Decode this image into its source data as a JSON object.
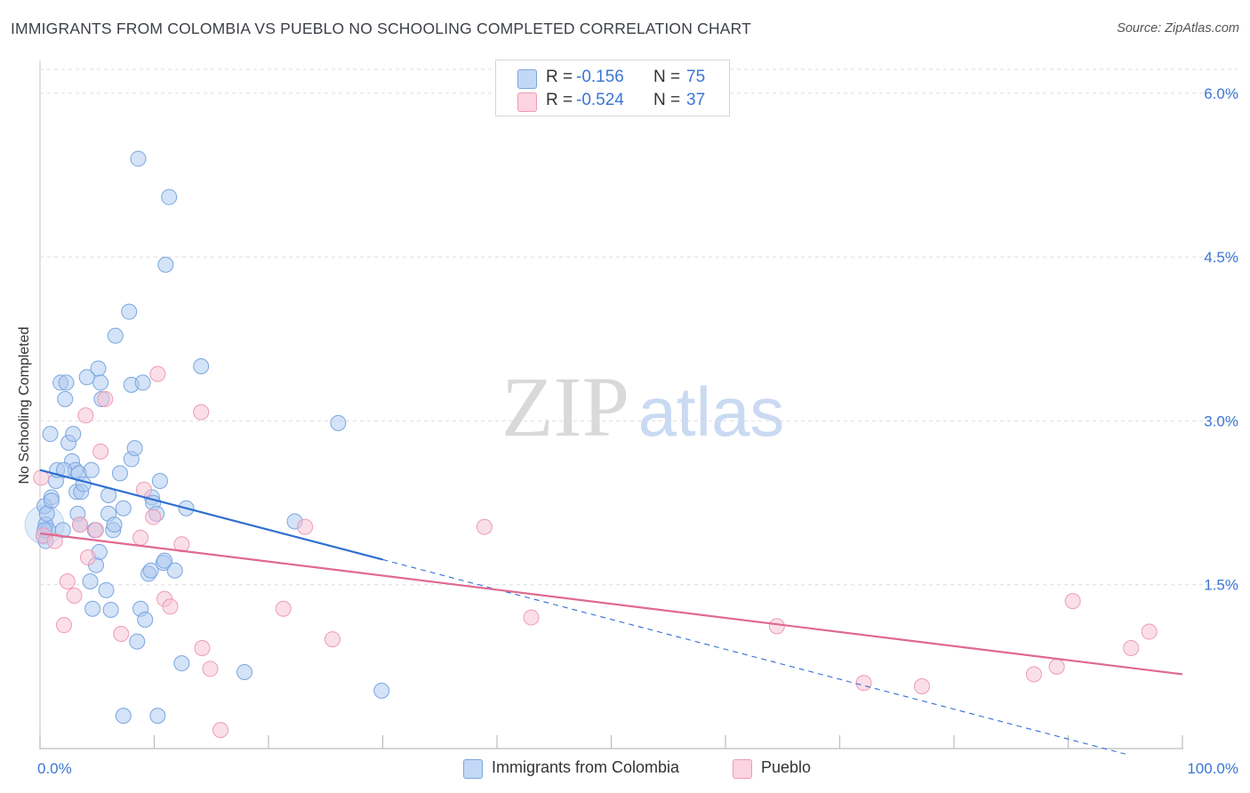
{
  "title": "IMMIGRANTS FROM COLOMBIA VS PUEBLO NO SCHOOLING COMPLETED CORRELATION CHART",
  "source": "Source: ZipAtlas.com",
  "watermark": {
    "zip": "ZIP",
    "atlas": "atlas"
  },
  "colors": {
    "blue_fill": "#a9c8f0",
    "blue_stroke": "#7aa6e0",
    "blue_line": "#2f6fd0",
    "pink_fill": "#f7bfd2",
    "pink_stroke": "#ee9bb6",
    "pink_line": "#e06890",
    "tick_label": "#3b76d4",
    "grid": "#dedede"
  },
  "legend": {
    "rows": [
      {
        "series": "blue",
        "r_label": "R =",
        "r_value": "-0.156",
        "n_label": "N =",
        "n_value": "75"
      },
      {
        "series": "pink",
        "r_label": "R =",
        "r_value": "-0.524",
        "n_label": "N =",
        "n_value": "37"
      }
    ]
  },
  "bottom_legend": {
    "blue_label": "Immigrants from Colombia",
    "pink_label": "Pueblo"
  },
  "chart_data": {
    "type": "scatter",
    "title": "IMMIGRANTS FROM COLOMBIA VS PUEBLO NO SCHOOLING COMPLETED CORRELATION CHART",
    "xlabel": "",
    "ylabel": "No Schooling Completed",
    "xlim": [
      0,
      100
    ],
    "ylim": [
      0,
      6.3
    ],
    "x_tick_labels": [
      {
        "value": 0,
        "label": "0.0%"
      },
      {
        "value": 100,
        "label": "100.0%"
      }
    ],
    "y_ticks": [
      {
        "value": 1.5,
        "label": "1.5%"
      },
      {
        "value": 3.0,
        "label": "3.0%"
      },
      {
        "value": 4.5,
        "label": "4.5%"
      },
      {
        "value": 6.0,
        "label": "6.0%"
      }
    ],
    "grid": "horizontal dashed",
    "series": [
      {
        "name": "Immigrants from Colombia",
        "color": "blue",
        "r": -0.156,
        "n": 75,
        "trend": {
          "x0": 0,
          "y0": 2.55,
          "x1": 30,
          "y1": 1.73,
          "dash_to_x": 95,
          "dash_to_y": -0.05
        },
        "points": [
          [
            0.3,
            1.95
          ],
          [
            0.4,
            2.22
          ],
          [
            0.5,
            2.05
          ],
          [
            0.6,
            2.15
          ],
          [
            0.7,
            2.0
          ],
          [
            0.5,
            1.9
          ],
          [
            1.0,
            2.3
          ],
          [
            0.9,
            2.88
          ],
          [
            1.4,
            2.45
          ],
          [
            1.5,
            2.55
          ],
          [
            2.0,
            2.0
          ],
          [
            1.8,
            3.35
          ],
          [
            2.2,
            3.2
          ],
          [
            2.3,
            3.35
          ],
          [
            2.5,
            2.8
          ],
          [
            2.8,
            2.63
          ],
          [
            2.9,
            2.88
          ],
          [
            3.1,
            2.55
          ],
          [
            3.2,
            2.35
          ],
          [
            3.4,
            2.52
          ],
          [
            3.3,
            2.15
          ],
          [
            3.5,
            2.05
          ],
          [
            3.6,
            2.35
          ],
          [
            3.8,
            2.42
          ],
          [
            4.1,
            3.4
          ],
          [
            4.5,
            2.55
          ],
          [
            4.4,
            1.53
          ],
          [
            4.6,
            1.28
          ],
          [
            4.8,
            2.0
          ],
          [
            4.9,
            1.68
          ],
          [
            5.2,
            1.8
          ],
          [
            5.1,
            3.48
          ],
          [
            5.3,
            3.35
          ],
          [
            5.4,
            3.2
          ],
          [
            5.8,
            1.45
          ],
          [
            6.0,
            2.32
          ],
          [
            6.0,
            2.15
          ],
          [
            6.2,
            1.27
          ],
          [
            6.4,
            2.0
          ],
          [
            6.5,
            2.05
          ],
          [
            6.6,
            3.78
          ],
          [
            7.0,
            2.52
          ],
          [
            7.3,
            2.2
          ],
          [
            7.3,
            0.3
          ],
          [
            7.8,
            4.0
          ],
          [
            8.0,
            2.65
          ],
          [
            8.0,
            3.33
          ],
          [
            8.3,
            2.75
          ],
          [
            8.5,
            0.98
          ],
          [
            8.6,
            5.4
          ],
          [
            8.8,
            1.28
          ],
          [
            9.0,
            3.35
          ],
          [
            9.2,
            1.18
          ],
          [
            9.5,
            1.6
          ],
          [
            9.7,
            1.63
          ],
          [
            9.8,
            2.3
          ],
          [
            9.9,
            2.25
          ],
          [
            10.2,
            2.15
          ],
          [
            10.5,
            2.45
          ],
          [
            10.3,
            0.3
          ],
          [
            10.8,
            1.7
          ],
          [
            10.9,
            1.72
          ],
          [
            11.0,
            4.43
          ],
          [
            11.3,
            5.05
          ],
          [
            11.8,
            1.63
          ],
          [
            12.4,
            0.78
          ],
          [
            12.8,
            2.2
          ],
          [
            14.1,
            3.5
          ],
          [
            17.9,
            0.7
          ],
          [
            22.3,
            2.08
          ],
          [
            26.1,
            2.98
          ],
          [
            29.9,
            0.53
          ],
          [
            0.4,
            2.0
          ],
          [
            1.0,
            2.27
          ],
          [
            2.1,
            2.55
          ]
        ]
      },
      {
        "name": "Pueblo",
        "color": "pink",
        "r": -0.524,
        "n": 37,
        "trend": {
          "x0": 0,
          "y0": 1.97,
          "x1": 100,
          "y1": 0.68
        },
        "points": [
          [
            0.1,
            2.48
          ],
          [
            0.3,
            1.95
          ],
          [
            1.3,
            1.9
          ],
          [
            2.1,
            1.13
          ],
          [
            2.4,
            1.53
          ],
          [
            3.0,
            1.4
          ],
          [
            3.5,
            2.05
          ],
          [
            4.0,
            3.05
          ],
          [
            4.2,
            1.75
          ],
          [
            4.9,
            2.0
          ],
          [
            5.3,
            2.72
          ],
          [
            5.7,
            3.2
          ],
          [
            7.1,
            1.05
          ],
          [
            8.8,
            1.93
          ],
          [
            9.1,
            2.37
          ],
          [
            9.9,
            2.12
          ],
          [
            10.3,
            3.43
          ],
          [
            10.9,
            1.37
          ],
          [
            11.4,
            1.3
          ],
          [
            12.4,
            1.87
          ],
          [
            14.1,
            3.08
          ],
          [
            14.2,
            0.92
          ],
          [
            14.9,
            0.73
          ],
          [
            15.8,
            0.17
          ],
          [
            21.3,
            1.28
          ],
          [
            23.2,
            2.03
          ],
          [
            25.6,
            1.0
          ],
          [
            38.9,
            2.03
          ],
          [
            43.0,
            1.2
          ],
          [
            64.5,
            1.12
          ],
          [
            72.1,
            0.6
          ],
          [
            77.2,
            0.57
          ],
          [
            87.0,
            0.68
          ],
          [
            89.0,
            0.75
          ],
          [
            90.4,
            1.35
          ],
          [
            95.5,
            0.92
          ],
          [
            97.1,
            1.07
          ]
        ]
      }
    ]
  }
}
